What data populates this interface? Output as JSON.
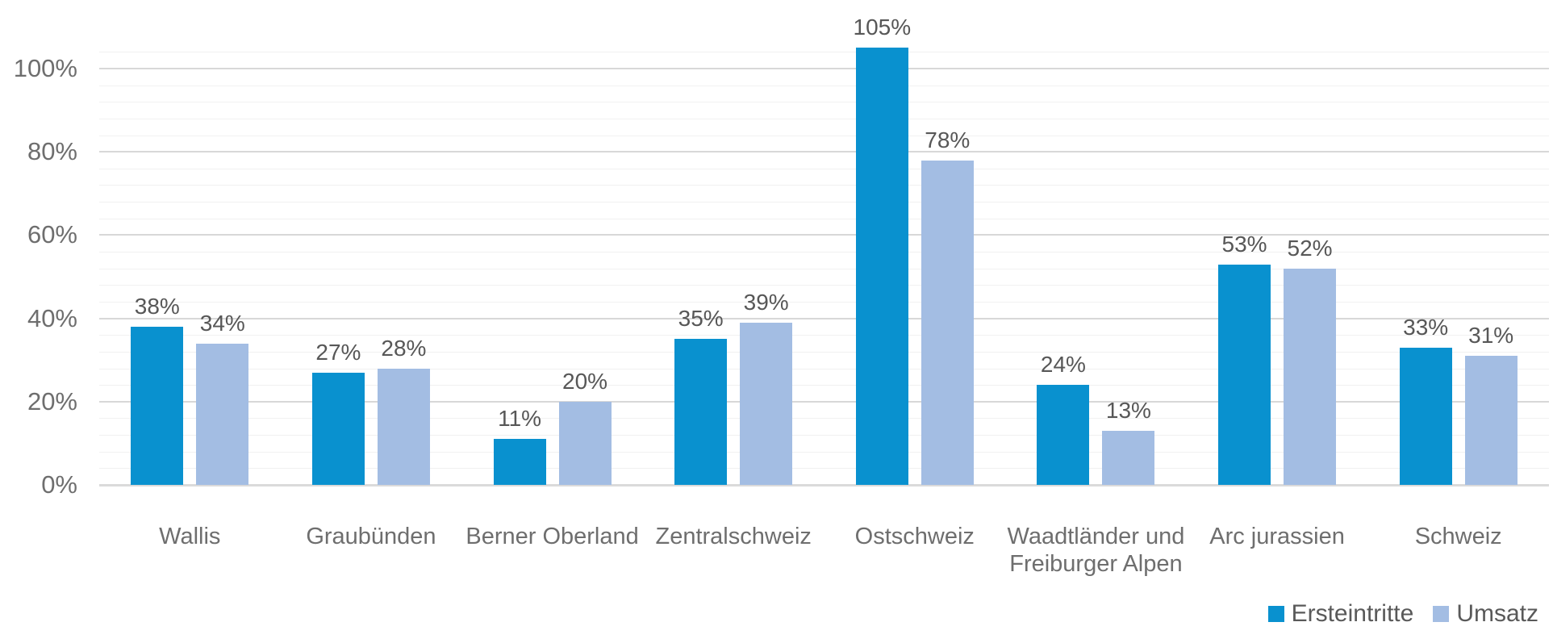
{
  "chart_data": {
    "type": "bar",
    "title": "",
    "xlabel": "",
    "ylabel": "",
    "categories": [
      "Wallis",
      "Graubünden",
      "Berner Oberland",
      "Zentralschweiz",
      "Ostschweiz",
      "Waadtländer und Freiburger Alpen",
      "Arc jurassien",
      "Schweiz"
    ],
    "series": [
      {
        "name": "Ersteintritte",
        "color": "#0991CF",
        "values": [
          38,
          27,
          11,
          35,
          105,
          24,
          53,
          33
        ]
      },
      {
        "name": "Umsatz",
        "color": "#A3BDE3",
        "values": [
          34,
          28,
          20,
          39,
          78,
          13,
          52,
          31
        ]
      }
    ],
    "data_labels": [
      [
        "38%",
        "27%",
        "11%",
        "35%",
        "105%",
        "24%",
        "53%",
        "33%"
      ],
      [
        "34%",
        "28%",
        "20%",
        "39%",
        "78%",
        "13%",
        "52%",
        "31%"
      ]
    ],
    "value_suffix": "%",
    "y_ticks": [
      {
        "label": "0%",
        "value": 0
      },
      {
        "label": "20%",
        "value": 20
      },
      {
        "label": "40%",
        "value": 40
      },
      {
        "label": "60%",
        "value": 60
      },
      {
        "label": "80%",
        "value": 80
      },
      {
        "label": "100%",
        "value": 100
      }
    ],
    "ylim": [
      0,
      105
    ],
    "major_unit": 20,
    "minor_unit": 4,
    "grid": "horizontal-major-and-minor",
    "legend_position": "bottom-right",
    "colors": {
      "series1": "#0991CF",
      "series2": "#A3BDE3",
      "grid_minor": "#F1F1F1",
      "grid_major": "#D8D8D8",
      "axis_line": "#DADADA",
      "tick_text": "#6E6E6E",
      "category_text": "#6E6E6E",
      "data_label_text": "#575757",
      "legend_text": "#595959",
      "background": "#FFFFFF"
    }
  }
}
